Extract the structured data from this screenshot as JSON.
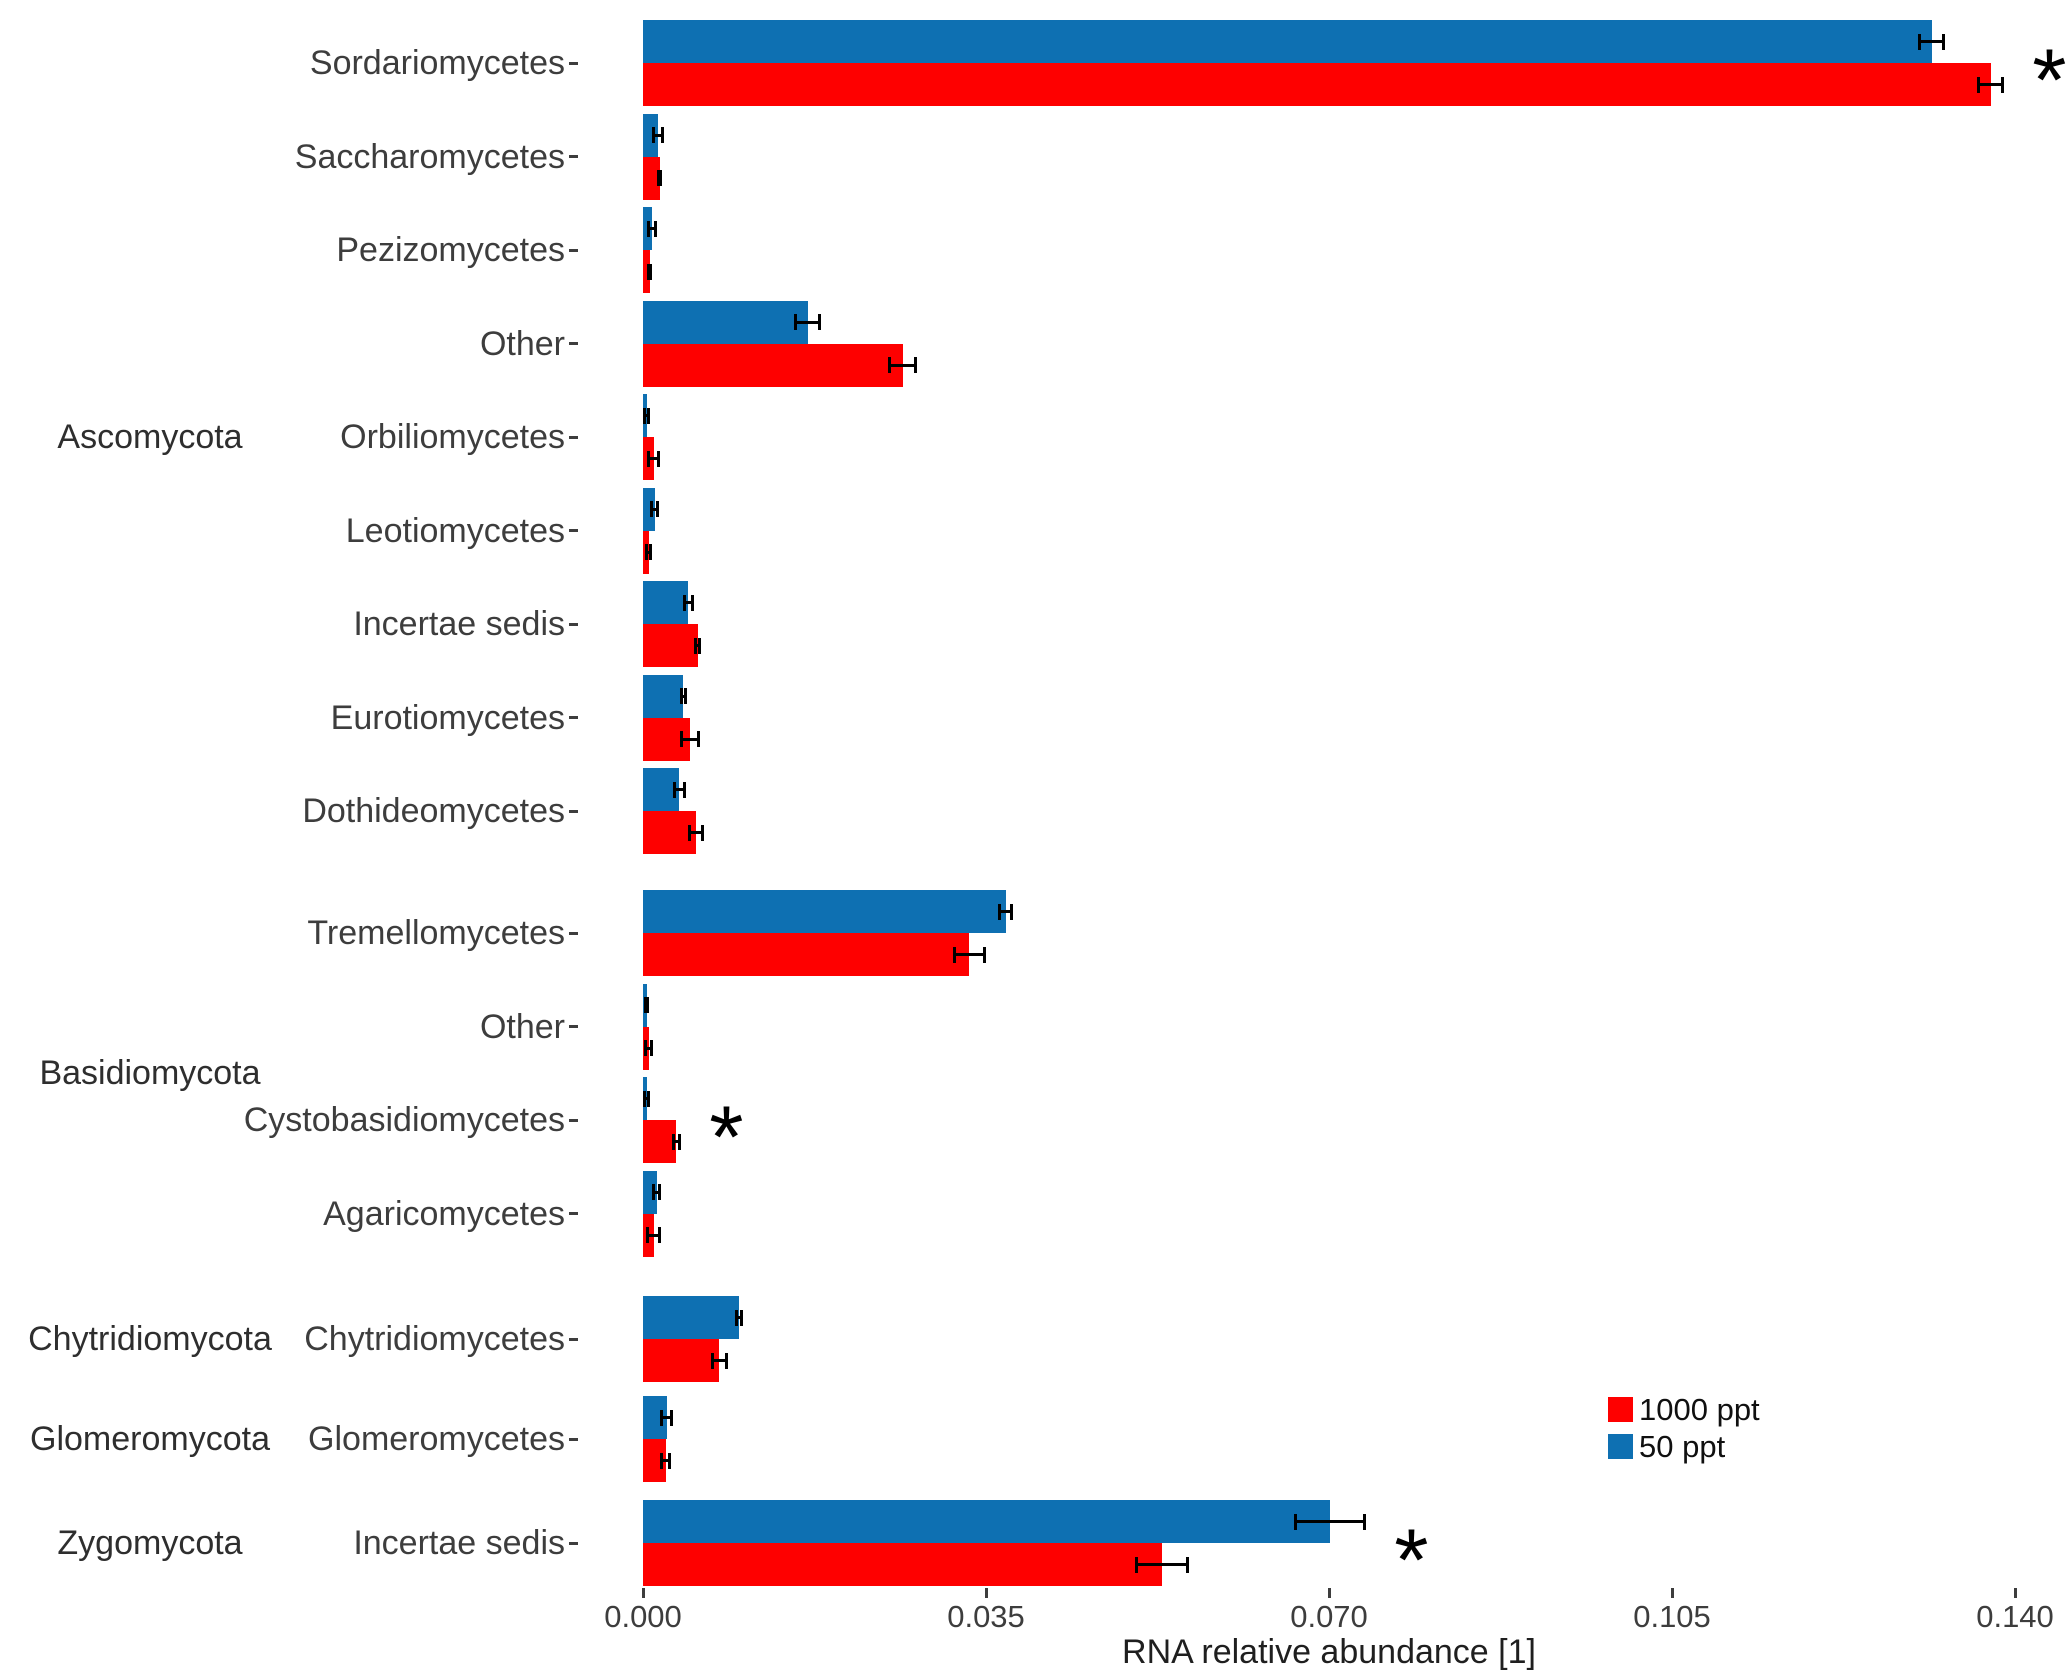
{
  "chart_data": {
    "type": "bar",
    "orientation": "horizontal",
    "title": "",
    "xlabel": "RNA relative abundance [1]",
    "ylabel": "",
    "xlim": [
      0,
      0.14
    ],
    "x_tick_labels": [
      "0.000",
      "0.035",
      "0.070",
      "0.105",
      "0.140"
    ],
    "x_tick_values": [
      0.0,
      0.035,
      0.07,
      0.105,
      0.14
    ],
    "grid": "off",
    "significance_marker": "*",
    "colors": {
      "ppt1000": "#fe0000",
      "ppt50": "#0e70b2",
      "error_bar": "#000000"
    },
    "legend": {
      "position": "right-bottom",
      "items": [
        {
          "key": "ppt1000",
          "label": "1000 ppt",
          "color": "#fe0000"
        },
        {
          "key": "ppt50",
          "label": "50 ppt",
          "color": "#0e70b2"
        }
      ]
    },
    "series_note": "each category shows top bar = 50 ppt (blue), bottom bar = 1000 ppt (red), values read from axis",
    "groups": [
      {
        "phylum": "Ascomycota",
        "rows": [
          {
            "label": "Sordariomycetes",
            "ppt50": 0.1315,
            "ppt50_err": 0.0012,
            "ppt1000": 0.1375,
            "ppt1000_err": 0.0012,
            "significant": true
          },
          {
            "label": "Saccharomycetes",
            "ppt50": 0.0015,
            "ppt50_err": 0.00045,
            "ppt1000": 0.0017,
            "ppt1000_err": 0.0001,
            "significant": false
          },
          {
            "label": "Pezizomycetes",
            "ppt50": 0.0009,
            "ppt50_err": 0.00035,
            "ppt1000": 0.0007,
            "ppt1000_err": 0.0001,
            "significant": false
          },
          {
            "label": "Other",
            "ppt50": 0.0168,
            "ppt50_err": 0.0012,
            "ppt1000": 0.0265,
            "ppt1000_err": 0.0013,
            "significant": false
          },
          {
            "label": "Orbiliomycetes",
            "ppt50": 0.0004,
            "ppt50_err": 0.0002,
            "ppt1000": 0.0011,
            "ppt1000_err": 0.0005,
            "significant": false
          },
          {
            "label": "Leotiomycetes",
            "ppt50": 0.0012,
            "ppt50_err": 0.0003,
            "ppt1000": 0.0006,
            "ppt1000_err": 0.0002,
            "significant": false
          },
          {
            "label": "Incertae sedis",
            "ppt50": 0.0046,
            "ppt50_err": 0.0004,
            "ppt1000": 0.0056,
            "ppt1000_err": 0.0002,
            "significant": false
          },
          {
            "label": "Eurotiomycetes",
            "ppt50": 0.0041,
            "ppt50_err": 0.0002,
            "ppt1000": 0.0048,
            "ppt1000_err": 0.0009,
            "significant": false
          },
          {
            "label": "Dothideomycetes",
            "ppt50": 0.0037,
            "ppt50_err": 0.0005,
            "ppt1000": 0.0054,
            "ppt1000_err": 0.0007,
            "significant": false
          }
        ]
      },
      {
        "phylum": "Basidiomycota",
        "rows": [
          {
            "label": "Tremellomycetes",
            "ppt50": 0.037,
            "ppt50_err": 0.0006,
            "ppt1000": 0.0333,
            "ppt1000_err": 0.0015,
            "significant": false
          },
          {
            "label": "Other",
            "ppt50": 0.0004,
            "ppt50_err": 0.0001,
            "ppt1000": 0.0006,
            "ppt1000_err": 0.0003,
            "significant": false
          },
          {
            "label": "Cystobasidiomycetes",
            "ppt50": 0.0004,
            "ppt50_err": 0.0002,
            "ppt1000": 0.0034,
            "ppt1000_err": 0.0003,
            "significant": true
          },
          {
            "label": "Agaricomycetes",
            "ppt50": 0.0014,
            "ppt50_err": 0.0003,
            "ppt1000": 0.0011,
            "ppt1000_err": 0.0006,
            "significant": false
          }
        ]
      },
      {
        "phylum": "Chytridiomycota",
        "rows": [
          {
            "label": "Chytridiomycetes",
            "ppt50": 0.0098,
            "ppt50_err": 0.0003,
            "ppt1000": 0.0078,
            "ppt1000_err": 0.0007,
            "significant": false
          }
        ]
      },
      {
        "phylum": "Glomeromycota",
        "rows": [
          {
            "label": "Glomeromycetes",
            "ppt50": 0.0024,
            "ppt50_err": 0.0005,
            "ppt1000": 0.0023,
            "ppt1000_err": 0.0004,
            "significant": false
          }
        ]
      },
      {
        "phylum": "Zygomycota",
        "rows": [
          {
            "label": "Incertae sedis",
            "ppt50": 0.0701,
            "ppt50_err": 0.0035,
            "ppt1000": 0.053,
            "ppt1000_err": 0.0026,
            "significant": true
          }
        ]
      }
    ]
  }
}
